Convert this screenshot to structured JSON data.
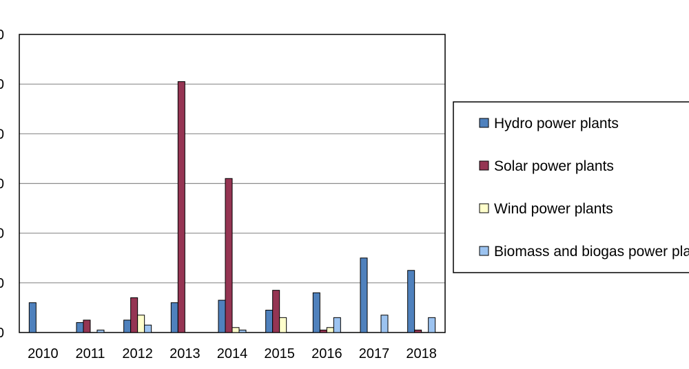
{
  "chart_data": {
    "type": "bar",
    "title": "",
    "xlabel": "",
    "ylabel": "",
    "categories": [
      "2010",
      "2011",
      "2012",
      "2013",
      "2014",
      "2015",
      "2016",
      "2017",
      "2018"
    ],
    "ylim": [
      0,
      12
    ],
    "y_ticks": [
      0,
      2,
      4,
      6,
      8,
      10,
      12
    ],
    "y_tick_labels": [
      "0",
      "0",
      "0",
      "0",
      "0",
      "0",
      "0"
    ],
    "grid": true,
    "legend_position": "right",
    "series": [
      {
        "name": "Hydro power plants",
        "color": "#4f81bd",
        "values": [
          1.2,
          0.4,
          0.5,
          1.2,
          1.3,
          0.9,
          1.6,
          3.0,
          2.5
        ]
      },
      {
        "name": "Solar power plants",
        "color": "#953553",
        "values": [
          0,
          0.5,
          1.4,
          10.1,
          6.2,
          1.7,
          0.1,
          0,
          0.1
        ]
      },
      {
        "name": "Wind power plants",
        "color": "#ffffcc",
        "values": [
          0,
          0,
          0.7,
          0,
          0.2,
          0.6,
          0.2,
          0,
          0
        ]
      },
      {
        "name": "Biomass and biogas power plants",
        "color": "#9cc3f0",
        "values": [
          0,
          0.1,
          0.3,
          0,
          0.1,
          0,
          0.6,
          0.7,
          0.6
        ]
      }
    ]
  }
}
